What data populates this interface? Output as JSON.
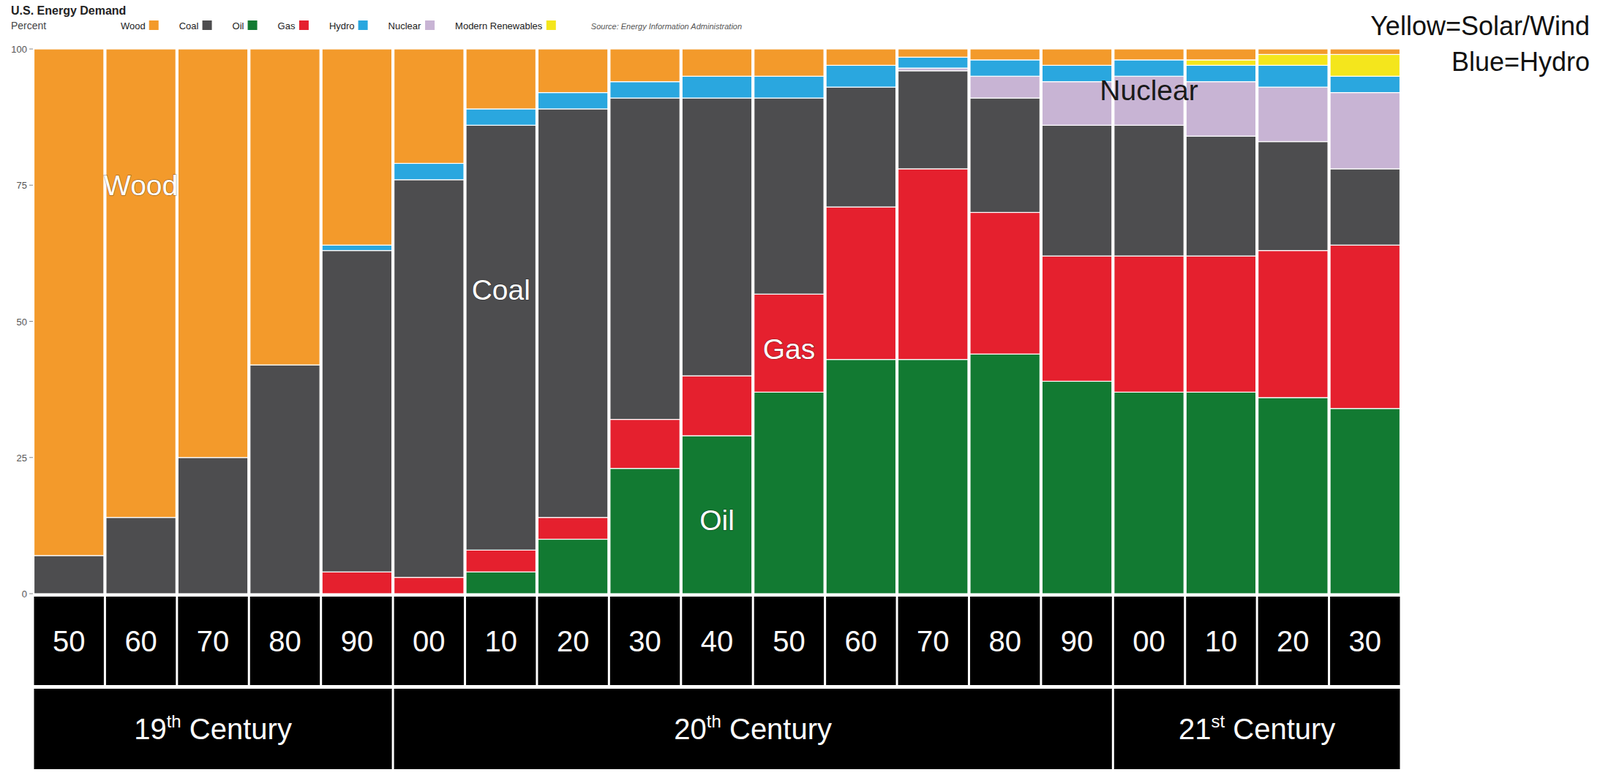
{
  "chart_data": {
    "type": "bar",
    "stacked": true,
    "title": "U.S. Energy Demand",
    "y_label": "Percent",
    "source": "Source: Energy Information Administration",
    "categories": [
      "50",
      "60",
      "70",
      "80",
      "90",
      "00",
      "10",
      "20",
      "30",
      "40",
      "50",
      "60",
      "70",
      "80",
      "90",
      "00",
      "10",
      "20",
      "30"
    ],
    "groups": [
      {
        "label": "19th Century",
        "categories": [
          "50",
          "60",
          "70",
          "80",
          "90"
        ]
      },
      {
        "label": "20th Century",
        "categories": [
          "00",
          "10",
          "20",
          "30",
          "40",
          "50",
          "60",
          "70",
          "80",
          "90"
        ]
      },
      {
        "label": "21st Century",
        "categories": [
          "00",
          "10",
          "20",
          "30"
        ]
      }
    ],
    "series": [
      {
        "name": "Wood",
        "color": "#f39a2b",
        "values": [
          93,
          86,
          75,
          58,
          36,
          21,
          11,
          8,
          6,
          5,
          5,
          3,
          1.5,
          2,
          3,
          2,
          2,
          1,
          1
        ]
      },
      {
        "name": "Coal",
        "color": "#4d4d4f",
        "values": [
          7,
          14,
          25,
          42,
          59,
          73,
          78,
          75,
          59,
          51,
          36,
          22,
          18,
          21,
          24,
          24,
          22,
          20,
          14
        ]
      },
      {
        "name": "Oil",
        "color": "#127a32",
        "values": [
          0,
          0,
          0,
          0,
          0,
          0,
          4,
          10,
          23,
          29,
          37,
          43,
          43,
          44,
          39,
          37,
          37,
          36,
          34
        ]
      },
      {
        "name": "Gas",
        "color": "#e5202e",
        "values": [
          0,
          0,
          0,
          0,
          4,
          3,
          4,
          4,
          9,
          11,
          18,
          28,
          35,
          26,
          23,
          25,
          25,
          27,
          30
        ]
      },
      {
        "name": "Hydro",
        "color": "#2aa7df",
        "values": [
          0,
          0,
          0,
          0,
          1,
          3,
          3,
          3,
          3,
          4,
          4,
          4,
          2,
          3,
          3,
          3,
          3,
          4,
          3
        ]
      },
      {
        "name": "Nuclear",
        "color": "#c8b4d4",
        "values": [
          0,
          0,
          0,
          0,
          0,
          0,
          0,
          0,
          0,
          0,
          0,
          0,
          0.5,
          4,
          8,
          9,
          10,
          10,
          14
        ]
      },
      {
        "name": "Modern Renewables",
        "color": "#f4e61c",
        "values": [
          0,
          0,
          0,
          0,
          0,
          0,
          0,
          0,
          0,
          0,
          0,
          0,
          0,
          0,
          0,
          0,
          1,
          2,
          4
        ]
      }
    ],
    "ylim": [
      0,
      100
    ],
    "yticks": [
      0,
      25,
      50,
      75,
      100
    ],
    "grid": false,
    "legend": "top-left",
    "annotations": [
      {
        "text": "Wood"
      },
      {
        "text": "Coal"
      },
      {
        "text": "Gas"
      },
      {
        "text": "Oil"
      },
      {
        "text": "Nuclear"
      }
    ],
    "notes": [
      "Yellow=Solar/Wind",
      "Blue=Hydro"
    ]
  }
}
